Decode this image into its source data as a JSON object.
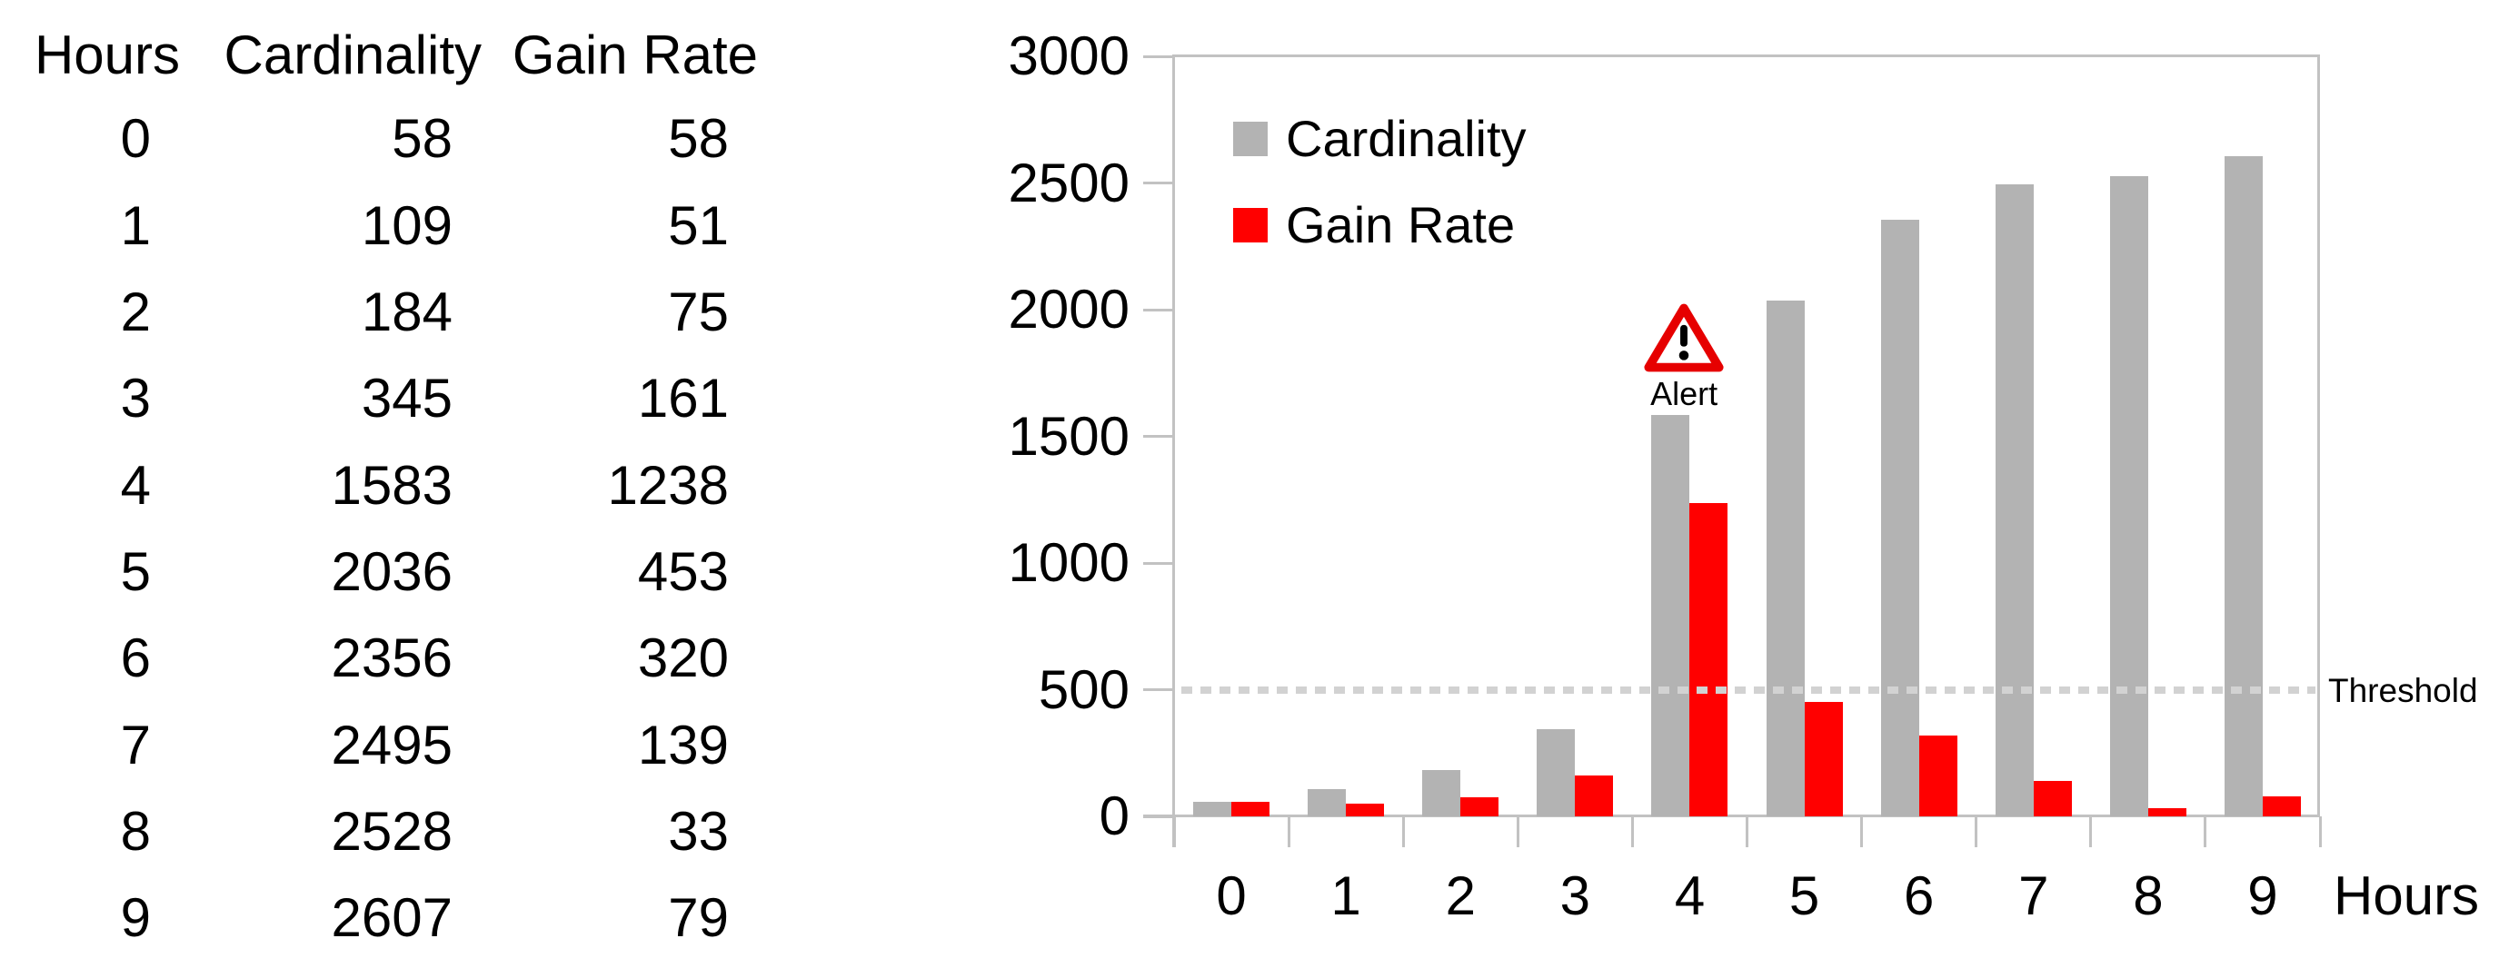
{
  "table": {
    "headers": [
      "Hours",
      "Cardinality",
      "Gain Rate"
    ],
    "rows": [
      [
        "0",
        "58",
        "58"
      ],
      [
        "1",
        "109",
        "51"
      ],
      [
        "2",
        "184",
        "75"
      ],
      [
        "3",
        "345",
        "161"
      ],
      [
        "4",
        "1583",
        "1238"
      ],
      [
        "5",
        "2036",
        "453"
      ],
      [
        "6",
        "2356",
        "320"
      ],
      [
        "7",
        "2495",
        "139"
      ],
      [
        "8",
        "2528",
        "33"
      ],
      [
        "9",
        "2607",
        "79"
      ]
    ]
  },
  "chart_data": {
    "type": "bar",
    "categories": [
      "0",
      "1",
      "2",
      "3",
      "4",
      "5",
      "6",
      "7",
      "8",
      "9"
    ],
    "series": [
      {
        "name": "Cardinality",
        "color": "#b3b3b3",
        "values": [
          58,
          109,
          184,
          345,
          1583,
          2036,
          2356,
          2495,
          2528,
          2607
        ]
      },
      {
        "name": "Gain Rate",
        "color": "#ff0000",
        "values": [
          58,
          51,
          75,
          161,
          1238,
          453,
          320,
          139,
          33,
          79
        ]
      }
    ],
    "xlabel": "Hours",
    "ylim": [
      0,
      3000
    ],
    "yticks": [
      0,
      500,
      1000,
      1500,
      2000,
      2500,
      3000
    ],
    "threshold": {
      "value": 500,
      "label": "Threshold",
      "style": "dotted",
      "color": "#d2d2d2"
    },
    "annotation": {
      "category": "4",
      "label": "Alert",
      "icon": "warning-triangle-icon",
      "color": "#e60000"
    },
    "legend": {
      "position": "top-left-inside",
      "entries": [
        "Cardinality",
        "Gain Rate"
      ]
    },
    "grid": false,
    "axis_color": "#c2c2c2",
    "text_color": "#000000"
  }
}
